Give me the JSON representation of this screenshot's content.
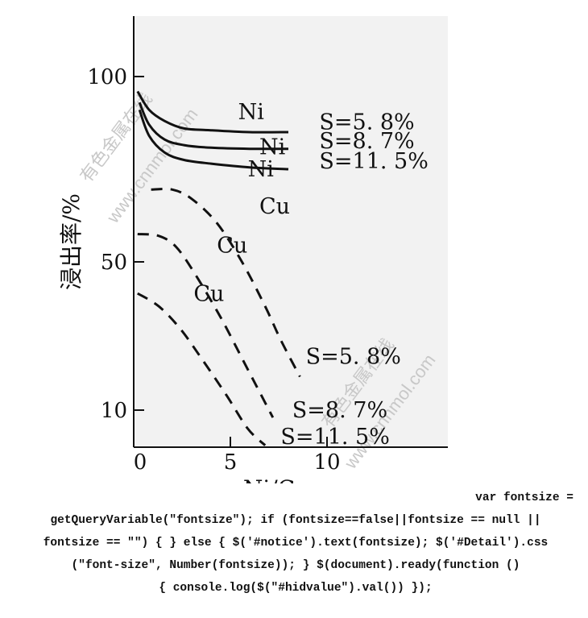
{
  "chart_data": {
    "type": "line",
    "x_axis": {
      "label": "Ni/Cu",
      "ticks": [
        {
          "value": 0,
          "label": "0"
        },
        {
          "value": 5,
          "label": "5"
        },
        {
          "value": 10,
          "label": "10"
        }
      ],
      "range": [
        0,
        16
      ]
    },
    "y_axis": {
      "label": "浸出率/%",
      "ticks": [
        {
          "value": 10,
          "label": "10"
        },
        {
          "value": 50,
          "label": "50"
        },
        {
          "value": 100,
          "label": "100"
        }
      ],
      "range": [
        0,
        105
      ]
    },
    "series": [
      {
        "name": "Ni",
        "condition": "S=5.8%",
        "style": "solid",
        "x": [
          0.2,
          0.8,
          1.6,
          2.6,
          4,
          6,
          8
        ],
        "y": [
          96,
          91,
          88,
          86,
          85.5,
          85,
          85
        ]
      },
      {
        "name": "Ni",
        "condition": "S=8.7%",
        "style": "solid",
        "x": [
          0.3,
          0.8,
          1.6,
          2.6,
          4,
          6,
          8
        ],
        "y": [
          93,
          87,
          83,
          81.5,
          80.8,
          80.5,
          80.5
        ]
      },
      {
        "name": "Ni",
        "condition": "S=11.5%",
        "style": "solid",
        "x": [
          0.3,
          0.8,
          1.6,
          2.6,
          4,
          6,
          8
        ],
        "y": [
          91,
          84,
          79.5,
          77.5,
          76.5,
          75.5,
          75
        ]
      },
      {
        "name": "Cu",
        "condition": "S=5.8%",
        "style": "dashed",
        "x": [
          0.9,
          2,
          3,
          4.3,
          5.6,
          6.8,
          7.6,
          8.6
        ],
        "y": [
          69.5,
          69.5,
          67,
          60.5,
          50,
          38,
          29,
          19
        ]
      },
      {
        "name": "Cu",
        "condition": "S=8.7%",
        "style": "dashed",
        "x": [
          0.2,
          1.3,
          2.2,
          3.2,
          4.5,
          5.7,
          6.6,
          7.2
        ],
        "y": [
          57.5,
          57,
          54,
          46.5,
          35,
          23,
          14,
          8
        ]
      },
      {
        "name": "Cu",
        "condition": "S=11.5%",
        "style": "dashed",
        "x": [
          0.2,
          1.3,
          2.4,
          3.5,
          4.8,
          5.9,
          6.8
        ],
        "y": [
          41.5,
          38,
          32,
          24,
          14,
          5,
          0.5
        ]
      }
    ],
    "annotations": [
      {
        "text": "Ni",
        "x": 5.4,
        "y": 88.5
      },
      {
        "text": "Ni",
        "x": 6.5,
        "y": 79
      },
      {
        "text": "Ni",
        "x": 5.9,
        "y": 73
      },
      {
        "text": "Cu",
        "x": 6.5,
        "y": 63
      },
      {
        "text": "Cu",
        "x": 4.3,
        "y": 52.5
      },
      {
        "text": "Cu",
        "x": 3.1,
        "y": 39.5
      },
      {
        "text": "S=5. 8%",
        "x": 9.6,
        "y": 85.8
      },
      {
        "text": "S=8. 7%",
        "x": 9.6,
        "y": 80.7
      },
      {
        "text": "S=11. 5%",
        "x": 9.6,
        "y": 75.2
      },
      {
        "text": "S=5. 8%",
        "x": 8.9,
        "y": 22.5
      },
      {
        "text": "S=8. 7%",
        "x": 8.2,
        "y": 8
      },
      {
        "text": "S=11. 5%",
        "x": 7.6,
        "y": 0.9
      }
    ],
    "grid": false,
    "legend": "none"
  },
  "watermarks": [
    "有色金属在线",
    "www.cnnmol.com",
    "有色金属在线",
    "www.cnnmol.com"
  ],
  "code_lines": [
    "var fontsize =",
    "getQueryVariable(\"fontsize\"); if (fontsize==false||fontsize == null ||",
    "fontsize == \"\") { } else { $('#notice').text(fontsize); $('#Detail').css",
    "(\"font-size\", Number(fontsize)); } $(document).ready(function ()",
    "{ console.log($(\"#hidvalue\").val()) });"
  ]
}
